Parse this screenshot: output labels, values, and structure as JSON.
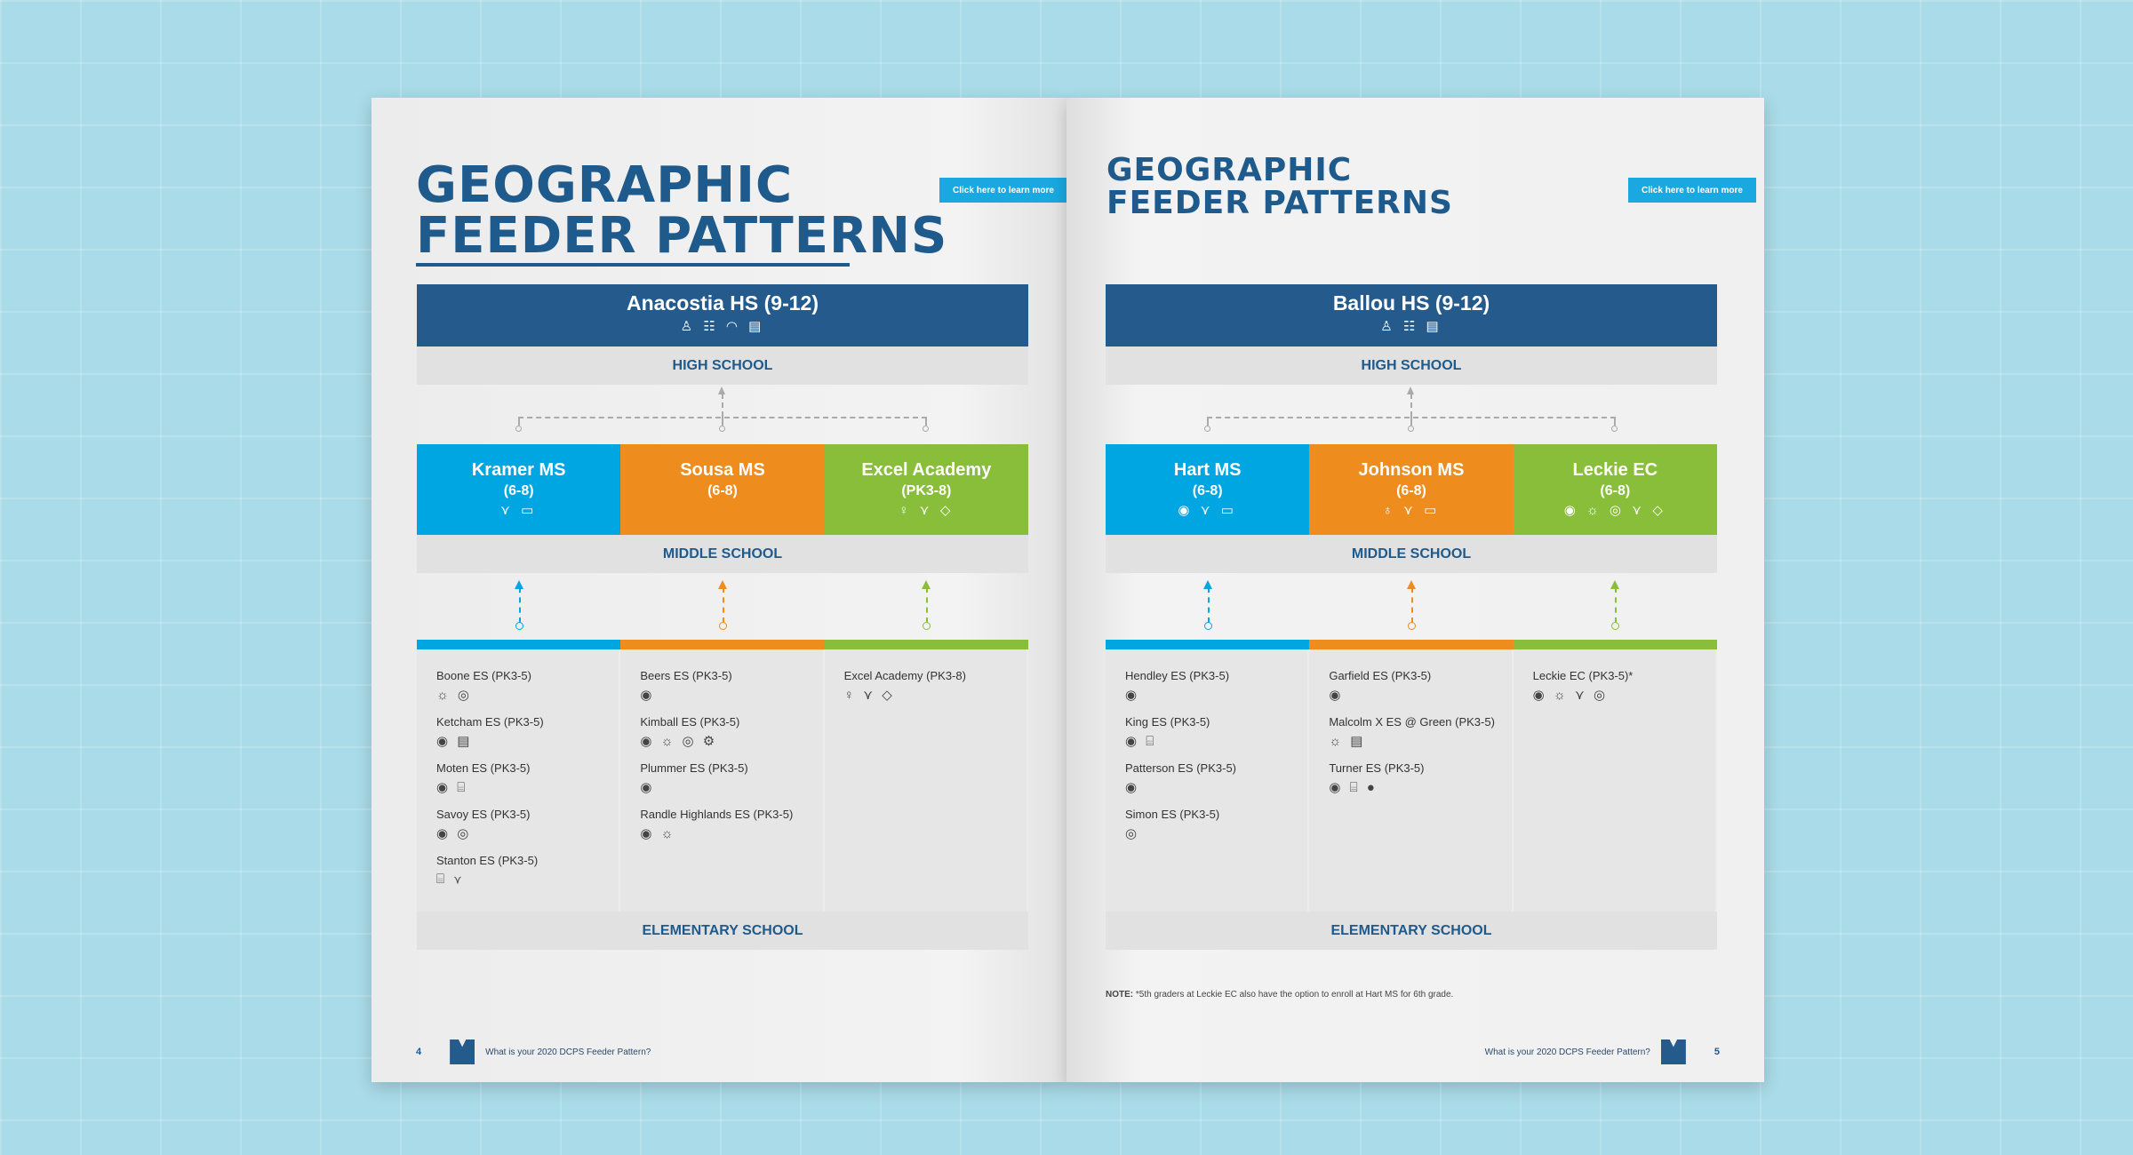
{
  "colors": {
    "navy": "#245b8c",
    "blue": "#00a6e2",
    "orange": "#ee8c1d",
    "green": "#88be3a",
    "background": "#a9dbe8",
    "button": "#1aa8e0"
  },
  "left": {
    "title_line1": "GEOGRAPHIC",
    "title_line2": "FEEDER PATTERNS",
    "learn_more": "Click here to learn more",
    "high_school": {
      "name": "Anacostia HS (9-12)",
      "icons": [
        "student-laptop-icon",
        "checklist-icon",
        "speedometer-icon",
        "certificate-icon"
      ],
      "glyphs": "♙ ☷ ◠ ▤"
    },
    "hs_label": "HIGH SCHOOL",
    "ms_label": "MIDDLE SCHOOL",
    "es_label": "ELEMENTARY SCHOOL",
    "middle": [
      {
        "name": "Kramer MS",
        "grades": "(6-8)",
        "color": "#00a6e2",
        "glyphs": "⋎ ▭"
      },
      {
        "name": "Sousa MS",
        "grades": "(6-8)",
        "color": "#ee8c1d",
        "glyphs": ""
      },
      {
        "name": "Excel Academy",
        "grades": "(PK3-8)",
        "color": "#88be3a",
        "glyphs": "♀ ⋎ ◇"
      }
    ],
    "elementary": [
      [
        {
          "name": "Boone ES (PK3-5)",
          "glyphs": "☼ ◎"
        },
        {
          "name": "Ketcham ES (PK3-5)",
          "glyphs": "◉ ▤"
        },
        {
          "name": "Moten ES (PK3-5)",
          "glyphs": "◉ ⌸"
        },
        {
          "name": "Savoy ES (PK3-5)",
          "glyphs": "◉ ◎"
        },
        {
          "name": "Stanton ES (PK3-5)",
          "glyphs": "⌸ ⋎"
        }
      ],
      [
        {
          "name": "Beers ES (PK3-5)",
          "glyphs": "◉"
        },
        {
          "name": "Kimball ES (PK3-5)",
          "glyphs": "◉ ☼ ◎ ⚙"
        },
        {
          "name": "Plummer ES (PK3-5)",
          "glyphs": "◉"
        },
        {
          "name": "Randle Highlands ES (PK3-5)",
          "glyphs": "◉ ☼"
        }
      ],
      [
        {
          "name": "Excel Academy (PK3-8)",
          "glyphs": "♀ ⋎ ◇"
        }
      ]
    ],
    "page_number": "4",
    "footer": "What is your 2020 DCPS Feeder Pattern?"
  },
  "right": {
    "title_line1": "GEOGRAPHIC",
    "title_line2": "FEEDER PATTERNS",
    "learn_more": "Click here to learn more",
    "high_school": {
      "name": "Ballou HS (9-12)",
      "icons": [
        "student-laptop-icon",
        "checklist-icon",
        "certificate-icon"
      ],
      "glyphs": "♙ ☷ ▤"
    },
    "hs_label": "HIGH SCHOOL",
    "ms_label": "MIDDLE SCHOOL",
    "es_label": "ELEMENTARY SCHOOL",
    "middle": [
      {
        "name": "Hart MS",
        "grades": "(6-8)",
        "color": "#00a6e2",
        "glyphs": "◉ ⋎ ▭"
      },
      {
        "name": "Johnson MS",
        "grades": "(6-8)",
        "color": "#ee8c1d",
        "glyphs": "♁ ⋎ ▭"
      },
      {
        "name": "Leckie EC",
        "grades": "(6-8)",
        "color": "#88be3a",
        "glyphs": "◉ ☼ ◎ ⋎ ◇"
      }
    ],
    "elementary": [
      [
        {
          "name": "Hendley ES (PK3-5)",
          "glyphs": "◉"
        },
        {
          "name": "King ES (PK3-5)",
          "glyphs": "◉ ⌸"
        },
        {
          "name": "Patterson ES (PK3-5)",
          "glyphs": "◉"
        },
        {
          "name": "Simon ES (PK3-5)",
          "glyphs": "◎"
        }
      ],
      [
        {
          "name": "Garfield ES (PK3-5)",
          "glyphs": "◉"
        },
        {
          "name": "Malcolm X ES @ Green (PK3-5)",
          "glyphs": "☼ ▤"
        },
        {
          "name": "Turner ES (PK3-5)",
          "glyphs": "◉ ⌸ ●"
        }
      ],
      [
        {
          "name": "Leckie EC (PK3-5)*",
          "glyphs": "◉ ☼ ⋎ ◎"
        }
      ]
    ],
    "note_label": "NOTE:",
    "note": " *5th graders at Leckie EC also have the option to enroll at Hart MS for 6th grade.",
    "page_number": "5",
    "footer": "What is your 2020 DCPS Feeder Pattern?"
  }
}
